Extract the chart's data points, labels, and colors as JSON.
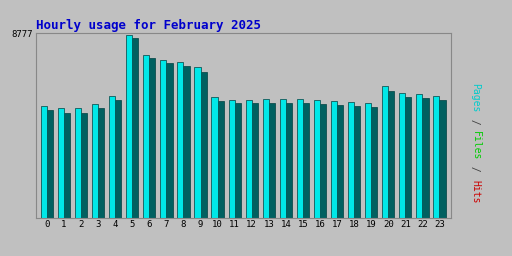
{
  "title": "Hourly usage for February 2025",
  "title_color": "#0000cc",
  "background_color": "#c0c0c0",
  "plot_bg_color": "#c0c0c0",
  "bar_color_cyan": "#00e8e8",
  "bar_color_teal": "#006060",
  "bar_edge_color": "#004040",
  "right_label_pages_color": "#00cccc",
  "right_label_files_color": "#00cc00",
  "right_label_hits_color": "#cc0000",
  "ytick_label": "8777",
  "xlabels": [
    "0",
    "1",
    "2",
    "3",
    "4",
    "5",
    "6",
    "7",
    "8",
    "9",
    "10",
    "11",
    "12",
    "13",
    "14",
    "15",
    "16",
    "17",
    "18",
    "19",
    "20",
    "21",
    "22",
    "23"
  ],
  "ymax": 8777,
  "hours": [
    0,
    1,
    2,
    3,
    4,
    5,
    6,
    7,
    8,
    9,
    10,
    11,
    12,
    13,
    14,
    15,
    16,
    17,
    18,
    19,
    20,
    21,
    22,
    23
  ],
  "pages": [
    5300,
    5200,
    5200,
    5400,
    5800,
    8700,
    7750,
    7500,
    7400,
    7150,
    5750,
    5600,
    5600,
    5650,
    5650,
    5650,
    5600,
    5550,
    5500,
    5450,
    6250,
    5950,
    5900,
    5800
  ],
  "files": [
    5100,
    5000,
    5000,
    5200,
    5600,
    8550,
    7600,
    7350,
    7200,
    6950,
    5550,
    5450,
    5450,
    5450,
    5450,
    5450,
    5400,
    5350,
    5300,
    5250,
    6050,
    5750,
    5700,
    5600
  ]
}
